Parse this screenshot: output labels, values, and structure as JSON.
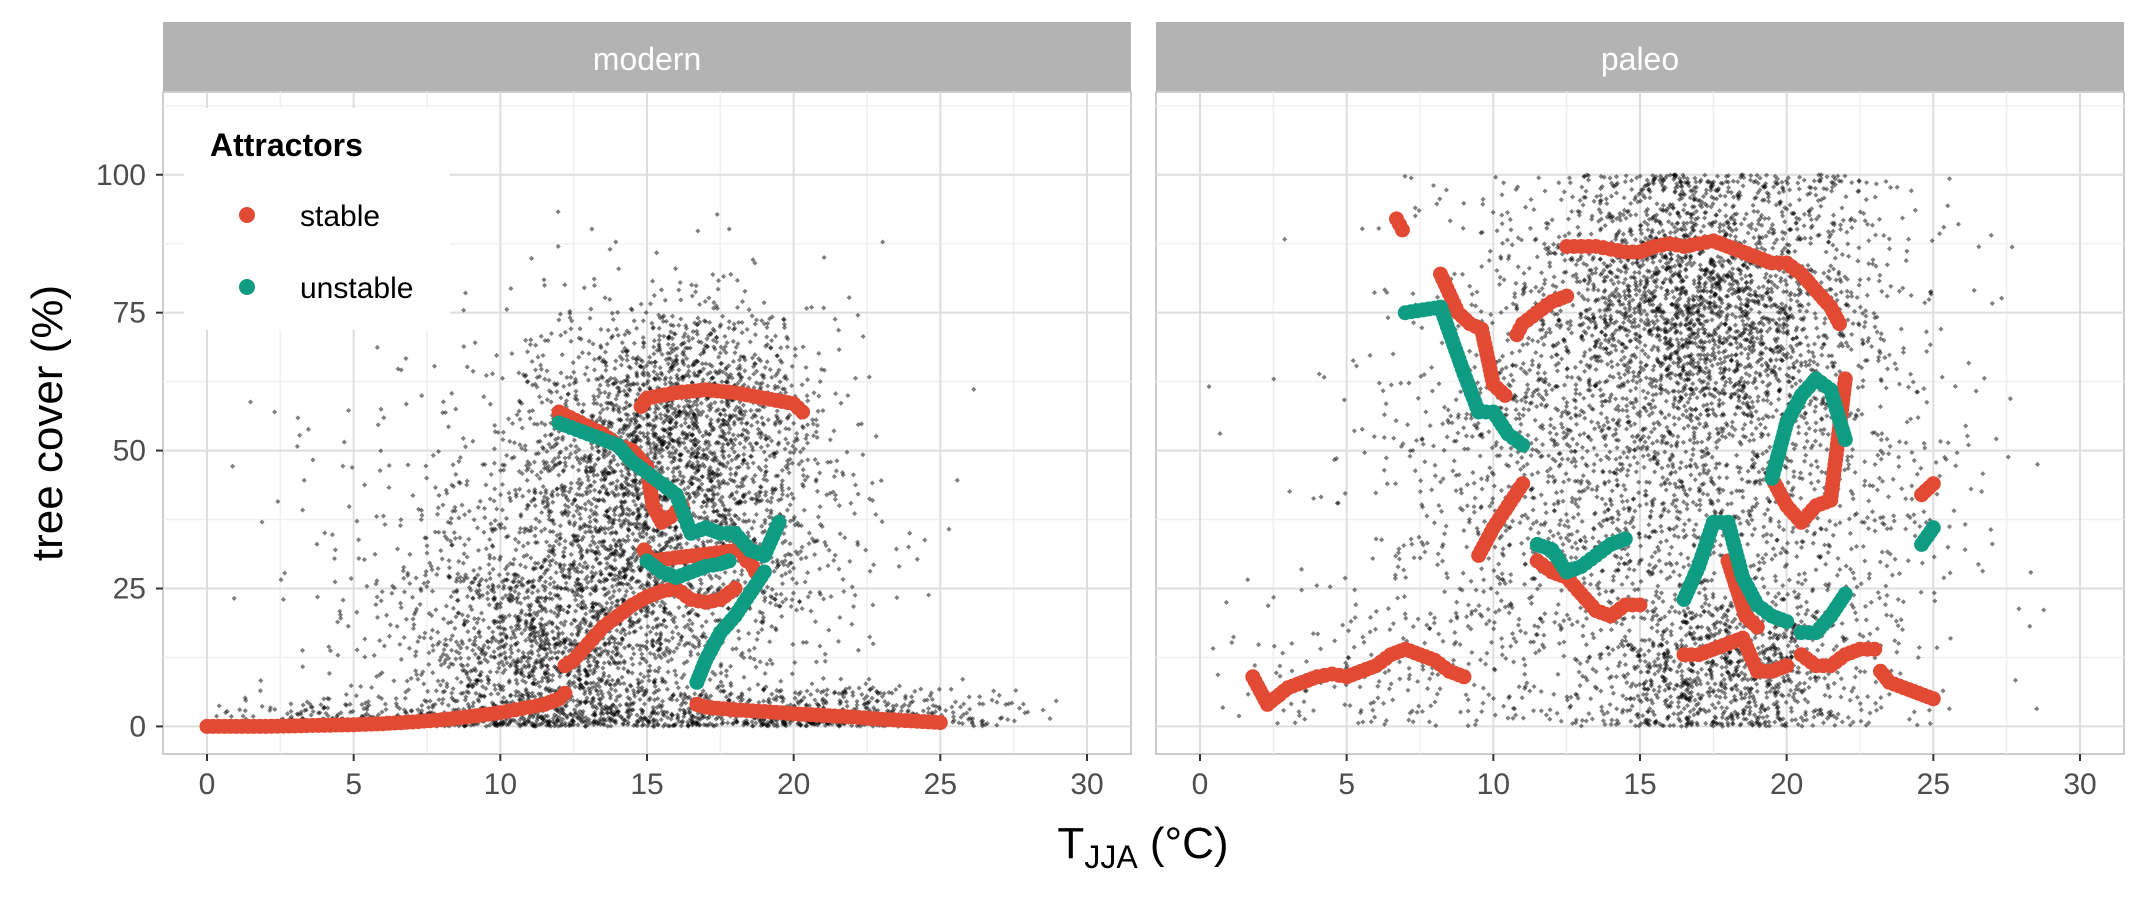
{
  "chart_data": {
    "type": "scatter",
    "facets": [
      "modern",
      "paleo"
    ],
    "xlabel": {
      "main": "T",
      "sub": "JJA",
      "unit": " (°C)"
    },
    "ylabel": "tree cover (%)",
    "xlim": [
      -1.5,
      31.5
    ],
    "ylim": [
      -5,
      115
    ],
    "x_ticks": [
      0,
      5,
      10,
      15,
      20,
      25,
      30
    ],
    "y_ticks": [
      0,
      25,
      50,
      75,
      100
    ],
    "legend": {
      "title": "Attractors",
      "placement": "top-left",
      "entries": [
        {
          "label": "stable",
          "color": "#E34A33"
        },
        {
          "label": "unstable",
          "color": "#0E9C82"
        }
      ]
    },
    "colors": {
      "stable": "#E34A33",
      "unstable": "#0E9C82",
      "observations": "#000000",
      "strip": "#B3B3B3"
    },
    "panels": [
      {
        "facet": "modern",
        "stable_segments": [
          {
            "x": [
              0,
              1,
              2,
              3,
              4,
              5,
              6,
              7,
              8,
              9,
              10,
              10.5,
              11,
              11.5,
              12,
              12.2
            ],
            "y": [
              0,
              0,
              0,
              0.1,
              0.2,
              0.3,
              0.5,
              0.8,
              1.2,
              1.8,
              2.5,
              3,
              3.5,
              4,
              5,
              6
            ]
          },
          {
            "x": [
              12.2,
              12.5,
              13,
              13.5,
              14,
              14.5,
              15,
              15.5,
              16,
              16.5,
              17,
              17.5,
              18
            ],
            "y": [
              11,
              12,
              15,
              18,
              20,
              22,
              23.5,
              24.5,
              25,
              23,
              22.5,
              23,
              25
            ]
          },
          {
            "x": [
              14.8,
              15,
              16,
              17,
              18,
              19,
              20,
              20.3
            ],
            "y": [
              58,
              59.5,
              60.5,
              61,
              60.5,
              59.5,
              58.5,
              57
            ]
          },
          {
            "x": [
              16.7,
              17,
              18,
              19,
              20,
              21,
              22,
              23,
              24,
              25
            ],
            "y": [
              4,
              3.5,
              3,
              2.7,
              2.3,
              2,
              1.7,
              1.3,
              1,
              0.7
            ]
          },
          {
            "x": [
              12,
              13.5,
              14,
              14.5,
              15,
              15.2,
              15.5,
              15.8,
              16,
              16.2
            ],
            "y": [
              57,
              53,
              51,
              50,
              47,
              40,
              37,
              38,
              39,
              40
            ]
          },
          {
            "x": [
              14.9,
              15.1,
              18.2,
              18.4,
              18.6,
              18.8
            ],
            "y": [
              32,
              30,
              32,
              30,
              29,
              27
            ]
          }
        ],
        "unstable_segments": [
          {
            "x": [
              12,
              13,
              14,
              14.5,
              15,
              15.5,
              16,
              16.5,
              17,
              17.5,
              18,
              18.5,
              19,
              19.5
            ],
            "y": [
              55,
              53,
              51,
              48,
              46,
              44,
              42,
              35,
              36,
              35,
              35,
              32,
              31,
              37
            ]
          },
          {
            "x": [
              15,
              15.5,
              16,
              16.5,
              17,
              17.5,
              17.8
            ],
            "y": [
              30,
              28,
              27,
              28,
              29,
              29.5,
              30
            ]
          },
          {
            "x": [
              16.7,
              17,
              17.5,
              18,
              18.5,
              19
            ],
            "y": [
              8,
              12,
              17,
              20,
              24,
              28
            ]
          }
        ],
        "cloud": [
          {
            "cx": 15.5,
            "cy": 40,
            "sx": 3.0,
            "sy": 17,
            "n": 2600
          },
          {
            "cx": 11.5,
            "cy": 14,
            "sx": 2.6,
            "sy": 11,
            "n": 1400
          },
          {
            "cx": 16.5,
            "cy": 60,
            "sx": 2.0,
            "sy": 9,
            "n": 700
          },
          {
            "cx": 20.5,
            "cy": 2,
            "sx": 3.5,
            "sy": 3,
            "n": 700
          },
          {
            "cx": 6.5,
            "cy": 1,
            "sx": 3.5,
            "sy": 2,
            "n": 400
          },
          {
            "cx": 10.0,
            "cy": 30,
            "sx": 5.0,
            "sy": 20,
            "n": 300
          }
        ]
      },
      {
        "facet": "paleo",
        "stable_segments": [
          {
            "x": [
              1.8,
              2.3,
              3,
              3.5,
              4,
              4.5,
              5,
              5.5,
              6,
              6.5,
              7,
              7.5,
              8,
              8.5,
              9
            ],
            "y": [
              9,
              4,
              7,
              8,
              9,
              9.5,
              9,
              10,
              11,
              13,
              14,
              13,
              12,
              10,
              9
            ]
          },
          {
            "x": [
              6.7,
              6.9
            ],
            "y": [
              92,
              90
            ]
          },
          {
            "x": [
              8.2,
              8.8,
              9.2,
              9.6,
              10,
              10.4
            ],
            "y": [
              82,
              75,
              73,
              72,
              62,
              60
            ]
          },
          {
            "x": [
              10.8,
              11,
              11.5,
              12,
              12.5
            ],
            "y": [
              71,
              73,
              75,
              77,
              78
            ]
          },
          {
            "x": [
              12.5,
              13,
              13.5,
              14,
              14.5,
              15,
              15.5,
              16,
              16.5,
              17,
              17.5,
              18,
              18.5,
              19,
              19.5,
              20,
              20.5,
              21,
              21.5,
              21.8
            ],
            "y": [
              87,
              87,
              87,
              86.5,
              86,
              86,
              87,
              87.5,
              87,
              87.5,
              88,
              87,
              86,
              85,
              84,
              84,
              82,
              79,
              76,
              73
            ]
          },
          {
            "x": [
              9.5,
              10,
              10.5,
              11
            ],
            "y": [
              31,
              36,
              40,
              44
            ]
          },
          {
            "x": [
              11.5,
              12,
              12.5,
              13,
              13.5,
              14,
              14.5,
              15
            ],
            "y": [
              30,
              28,
              27,
              24,
              21,
              20,
              22,
              22
            ]
          },
          {
            "x": [
              16.5,
              17,
              17.5,
              18,
              18.5,
              19,
              19.5,
              20
            ],
            "y": [
              13,
              13,
              14,
              15,
              16,
              10,
              10,
              11
            ]
          },
          {
            "x": [
              20.5,
              21,
              21.5,
              22,
              22.5,
              23
            ],
            "y": [
              13,
              11,
              11,
              13,
              14,
              14
            ]
          },
          {
            "x": [
              23.2,
              23.5,
              24,
              24.5,
              25
            ],
            "y": [
              10,
              8,
              7,
              6,
              5
            ]
          },
          {
            "x": [
              18,
              18.3,
              18.6,
              19
            ],
            "y": [
              30,
              25,
              20,
              18
            ]
          },
          {
            "x": [
              19.5,
              20,
              20.5,
              21,
              21.5,
              22
            ],
            "y": [
              45,
              40,
              37,
              40,
              41,
              63
            ]
          },
          {
            "x": [
              24.6,
              25
            ],
            "y": [
              42,
              44
            ]
          }
        ],
        "unstable_segments": [
          {
            "x": [
              7,
              8.2,
              9,
              9.5,
              10,
              10.5,
              11
            ],
            "y": [
              75,
              76,
              64,
              57,
              57,
              53,
              51
            ]
          },
          {
            "x": [
              11.5,
              12,
              12.5,
              13,
              13.5,
              14,
              14.5
            ],
            "y": [
              33,
              32,
              28,
              29,
              31,
              33,
              34
            ]
          },
          {
            "x": [
              16.5,
              17,
              17.5,
              18,
              18.5,
              19,
              19.5,
              20
            ],
            "y": [
              23,
              29,
              37,
              37,
              27,
              22,
              20,
              19
            ]
          },
          {
            "x": [
              19.5,
              20,
              20.5,
              21,
              21.5,
              22
            ],
            "y": [
              45,
              55,
              60,
              63,
              61,
              52
            ]
          },
          {
            "x": [
              20.5,
              21,
              21.5,
              22
            ],
            "y": [
              17,
              17,
              20,
              24
            ]
          },
          {
            "x": [
              24.6,
              25
            ],
            "y": [
              33,
              36
            ]
          }
        ],
        "cloud": [
          {
            "cx": 17.0,
            "cy": 78,
            "sx": 2.8,
            "sy": 14,
            "n": 2200
          },
          {
            "cx": 16.0,
            "cy": 45,
            "sx": 4.0,
            "sy": 25,
            "n": 1800
          },
          {
            "cx": 18.0,
            "cy": 10,
            "sx": 2.0,
            "sy": 8,
            "n": 800
          },
          {
            "cx": 10.5,
            "cy": 45,
            "sx": 3.0,
            "sy": 25,
            "n": 500
          },
          {
            "cx": 22.0,
            "cy": 40,
            "sx": 2.5,
            "sy": 25,
            "n": 300
          },
          {
            "cx": 6.0,
            "cy": 10,
            "sx": 3.0,
            "sy": 7,
            "n": 150
          }
        ]
      }
    ]
  }
}
